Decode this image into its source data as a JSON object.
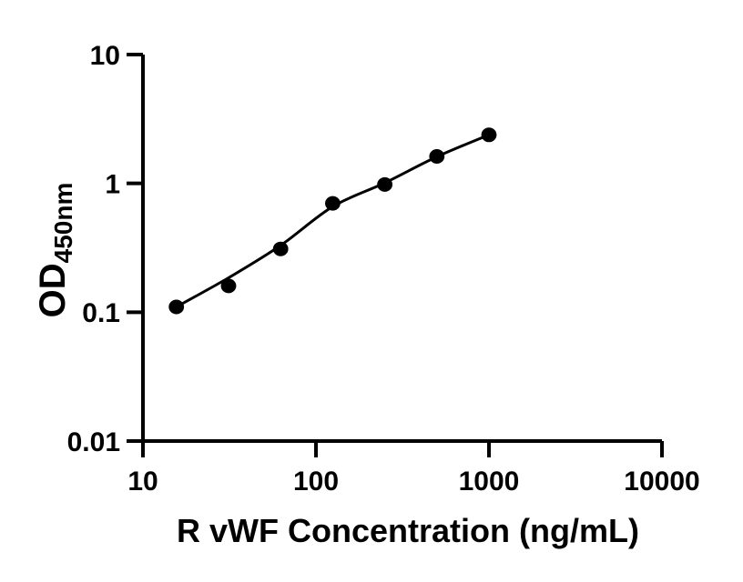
{
  "figure": {
    "background_color": "#ffffff",
    "foreground_color": "#000000"
  },
  "chart_data": {
    "type": "scatter",
    "title": "",
    "xlabel": "R vWF Concentration (ng/mL)",
    "ylabel_main": "OD",
    "ylabel_sub": "450nm",
    "x_scale": "log10",
    "y_scale": "log10",
    "xlim": [
      10,
      10000
    ],
    "ylim": [
      0.01,
      10
    ],
    "x_ticks": [
      10,
      100,
      1000,
      10000
    ],
    "x_tick_labels": [
      "10",
      "100",
      "1000",
      "10000"
    ],
    "y_ticks": [
      10,
      1,
      0.1,
      0.01
    ],
    "y_tick_labels": [
      "10",
      "1",
      "0.1",
      "0.01"
    ],
    "grid": false,
    "legend": null,
    "series": [
      {
        "name": "standard-curve-points",
        "marker": "filled-circle",
        "color": "#000000",
        "x": [
          15.6,
          31.25,
          62.5,
          125,
          250,
          500,
          1000
        ],
        "y": [
          0.11,
          0.16,
          0.31,
          0.7,
          0.98,
          1.62,
          2.38
        ]
      }
    ],
    "fit_curve": {
      "name": "fitted-curve",
      "color": "#000000",
      "x": [
        15.6,
        31.25,
        62.5,
        125,
        250,
        500,
        1000
      ],
      "y": [
        0.11,
        0.185,
        0.33,
        0.66,
        1.01,
        1.61,
        2.38
      ]
    }
  }
}
